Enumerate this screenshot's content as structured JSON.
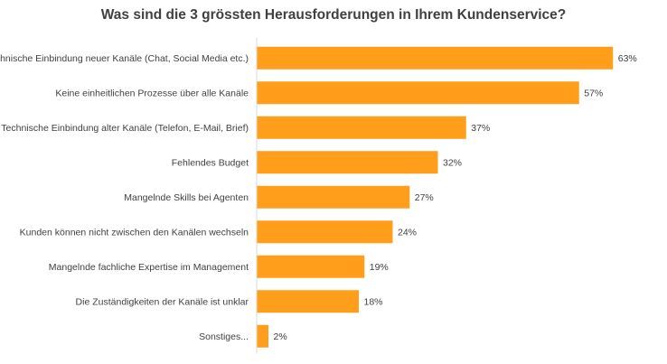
{
  "chart_data": {
    "type": "bar",
    "orientation": "horizontal",
    "title": "Was sind die 3 grössten Herausforderungen in Ihrem Kundenservice?",
    "categories": [
      "Technische Einbindung neuer Kanäle (Chat, Social Media etc.)",
      "Keine einheitlichen Prozesse über alle Kanäle",
      "Technische Einbindung alter Kanäle (Telefon, E-Mail, Brief)",
      "Fehlendes Budget",
      "Mangelnde Skills bei Agenten",
      "Kunden können nicht zwischen den Kanälen wechseln",
      "Mangelnde fachliche Expertise im Management",
      "Die Zuständigkeiten der Kanäle ist unklar",
      "Sonstiges..."
    ],
    "values": [
      63,
      57,
      37,
      32,
      27,
      24,
      19,
      18,
      2
    ],
    "value_labels": [
      "63%",
      "57%",
      "37%",
      "32%",
      "27%",
      "24%",
      "19%",
      "18%",
      "2%"
    ],
    "unit": "%",
    "xlim": [
      0,
      100
    ],
    "grid": false,
    "legend": "none",
    "bar_color": "#FF9E1A",
    "axis_color": "#D9D9D9",
    "text_color": "#404040"
  }
}
